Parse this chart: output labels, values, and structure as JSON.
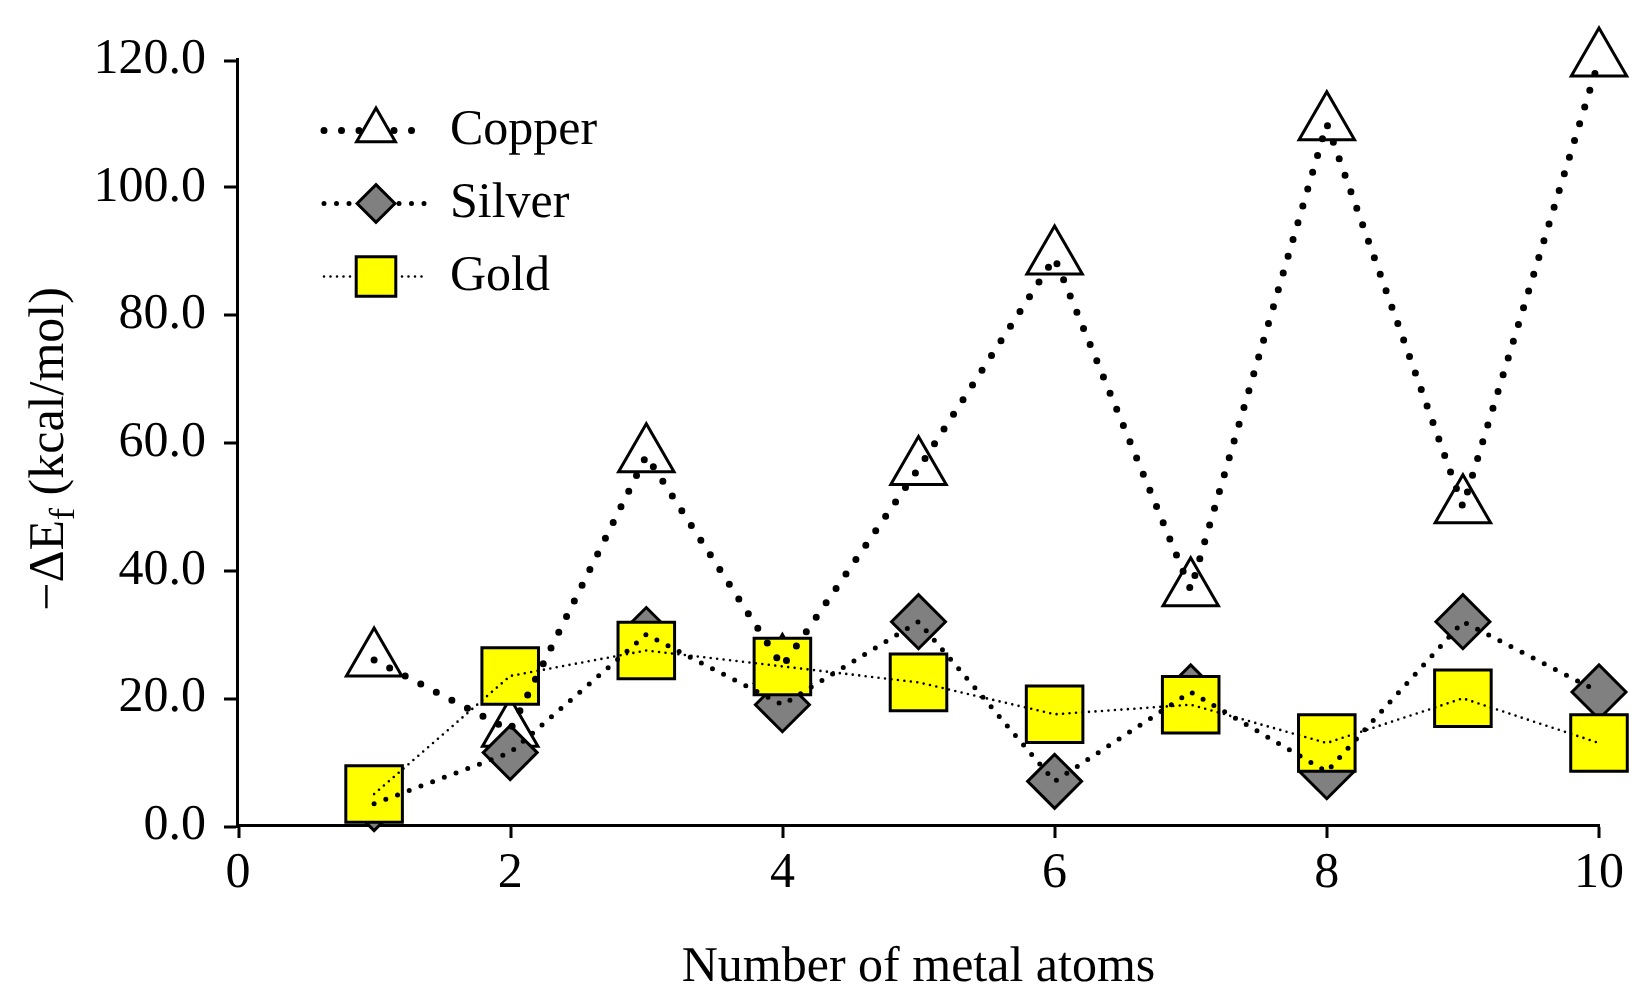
{
  "chart_data": {
    "type": "line",
    "xlabel": "Number of metal atoms",
    "ylabel": "−ΔE$_{f}$ (kcal/mol)",
    "x": [
      1,
      2,
      3,
      4,
      5,
      6,
      7,
      8,
      9,
      10
    ],
    "series": [
      {
        "name": "Copper",
        "color": "#ffffff",
        "marker": "triangle",
        "line_style": "dotted",
        "values": [
          26,
          15,
          58,
          25,
          56,
          89,
          37,
          110,
          50,
          120
        ]
      },
      {
        "name": "Silver",
        "color": "#808080",
        "marker": "diamond",
        "line_style": "dotted",
        "values": [
          3.5,
          11.5,
          30,
          19,
          32,
          7,
          21,
          8.5,
          32,
          21
        ]
      },
      {
        "name": "Gold",
        "color": "#ffff00",
        "marker": "square",
        "line_style": "dotted",
        "values": [
          5,
          23.5,
          27.5,
          25,
          22.5,
          17.5,
          19,
          13,
          20,
          13
        ]
      }
    ],
    "xlim": [
      0,
      10
    ],
    "xticks": [
      0,
      2,
      4,
      6,
      8,
      10
    ],
    "ylim": [
      0,
      120
    ],
    "yticks": [
      {
        "value": 0,
        "label": "0.0"
      },
      {
        "value": 20,
        "label": "20.0"
      },
      {
        "value": 40,
        "label": "40.0"
      },
      {
        "value": 60,
        "label": "60.0"
      },
      {
        "value": 80,
        "label": "80.0"
      },
      {
        "value": 100,
        "label": "100.0"
      },
      {
        "value": 120,
        "label": "120.0"
      }
    ],
    "legend": "top left"
  }
}
